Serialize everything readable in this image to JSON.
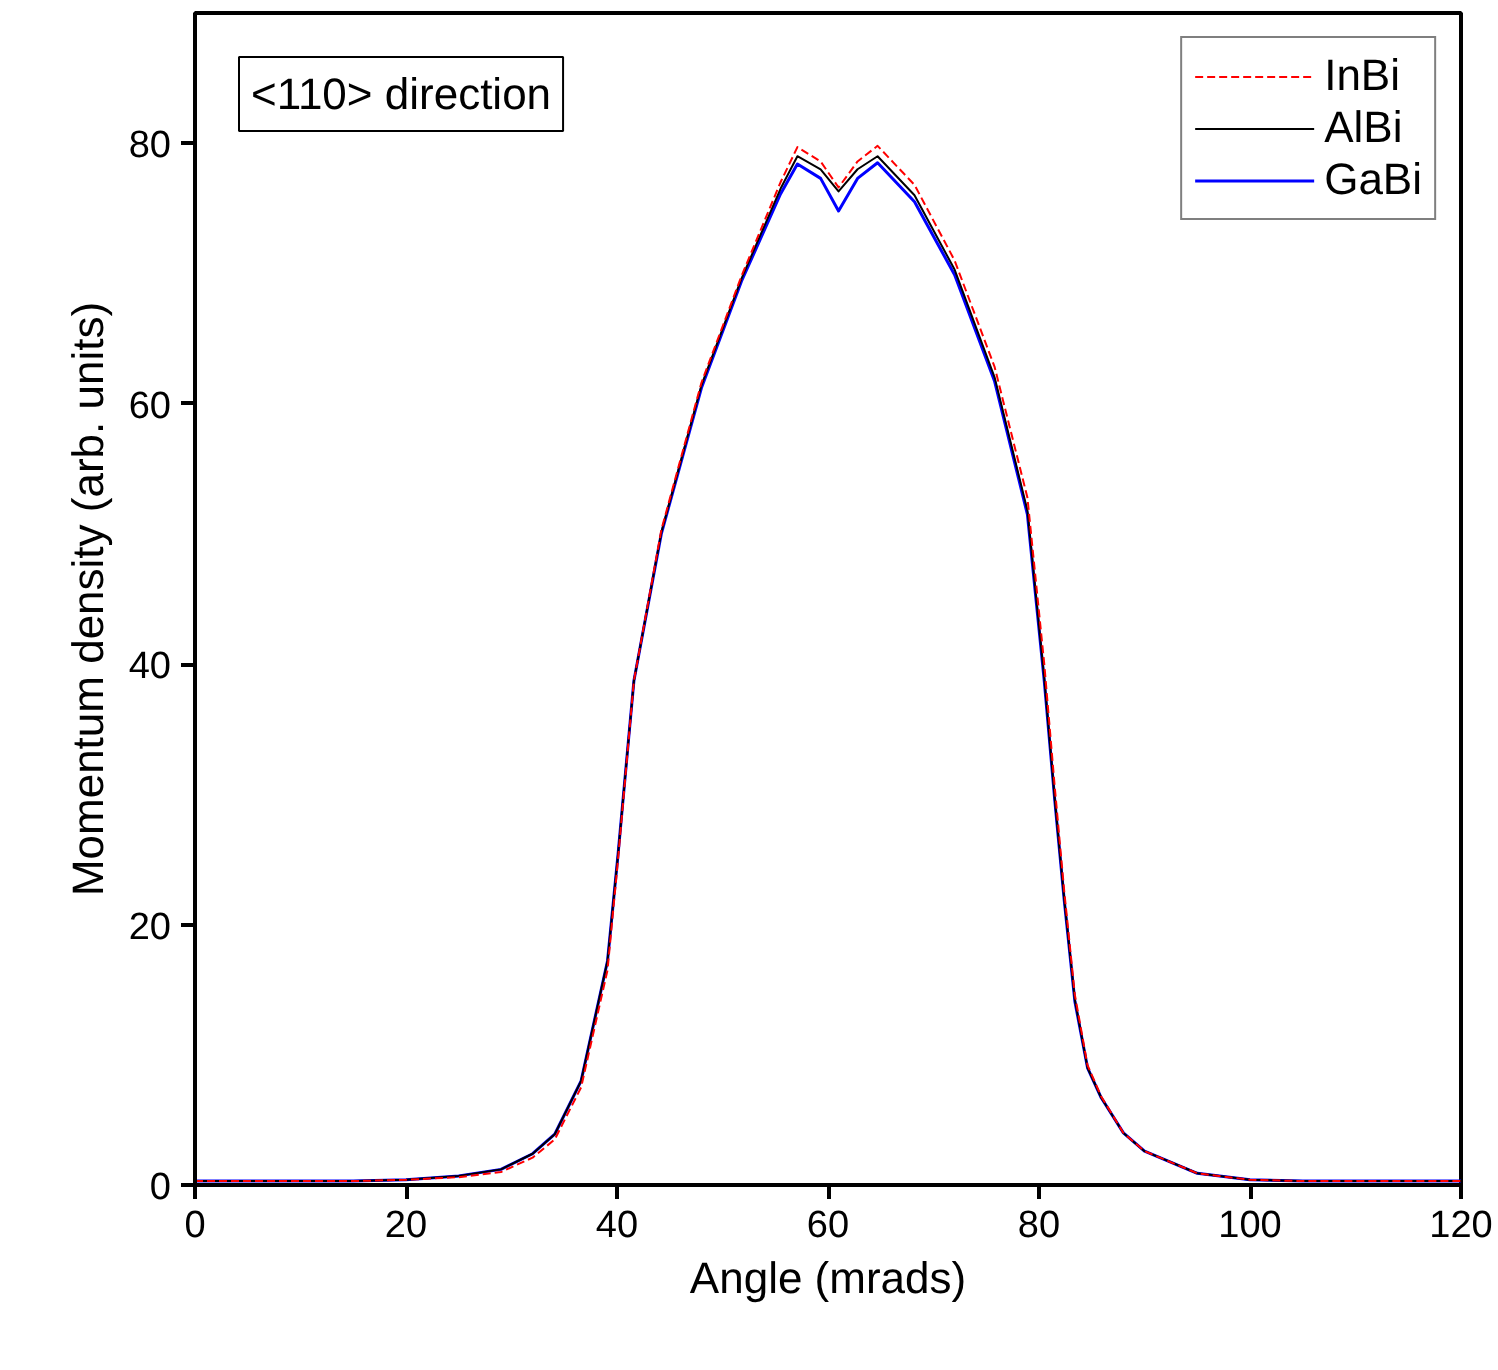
{
  "chart_data": {
    "type": "line",
    "xlabel": "Angle (mrads)",
    "ylabel": "Momentum density (arb. units)",
    "annotations": [
      "<110> direction"
    ],
    "x": [
      0,
      5,
      10,
      15,
      20,
      25,
      29,
      32,
      34.1,
      36.6,
      39.1,
      40.1,
      41.6,
      44.2,
      48,
      51.8,
      55.5,
      57.1,
      59.3,
      61,
      62.8,
      64.7,
      68.2,
      72,
      75.8,
      78.9,
      80.5,
      81.5,
      82.4,
      83.4,
      84.6,
      85.9,
      88,
      90,
      95,
      100,
      105,
      110,
      115,
      120
    ],
    "series": [
      {
        "name": "InBi",
        "color": "#ff0000",
        "line_style": "dashed",
        "values": [
          0.3,
          0.3,
          0.3,
          0.3,
          0.4,
          0.6,
          1.0,
          2.1,
          3.5,
          7.5,
          16.5,
          25.0,
          38.7,
          50.3,
          61.6,
          69.8,
          77.0,
          79.7,
          78.6,
          76.6,
          78.6,
          79.8,
          76.8,
          71.0,
          62.8,
          52.8,
          40.0,
          30.5,
          22.5,
          14.6,
          9.2,
          6.8,
          4.0,
          2.6,
          0.9,
          0.4,
          0.3,
          0.3,
          0.3,
          0.3
        ]
      },
      {
        "name": "AlBi",
        "color": "#000000",
        "line_style": "solid",
        "values": [
          0.3,
          0.3,
          0.3,
          0.3,
          0.4,
          0.7,
          1.2,
          2.4,
          3.9,
          8.0,
          17.2,
          25.4,
          38.7,
          50.1,
          61.4,
          69.6,
          76.5,
          79.0,
          78.0,
          76.3,
          78.0,
          79.0,
          76.0,
          70.3,
          62.0,
          51.8,
          38.9,
          29.6,
          21.9,
          14.2,
          9.0,
          6.7,
          4.0,
          2.6,
          0.9,
          0.4,
          0.3,
          0.3,
          0.3,
          0.3
        ]
      },
      {
        "name": "GaBi",
        "color": "#0000ff",
        "line_style": "solid",
        "values": [
          0.3,
          0.3,
          0.3,
          0.3,
          0.4,
          0.7,
          1.2,
          2.4,
          3.9,
          8.0,
          17.2,
          25.4,
          38.7,
          50.0,
          61.2,
          69.4,
          76.1,
          78.4,
          77.3,
          74.8,
          77.3,
          78.5,
          75.5,
          69.9,
          61.7,
          51.5,
          38.7,
          29.5,
          21.8,
          14.1,
          9.0,
          6.7,
          4.0,
          2.6,
          0.9,
          0.4,
          0.3,
          0.3,
          0.3,
          0.3
        ]
      }
    ],
    "xlim": [
      0,
      120
    ],
    "ylim": [
      0,
      90
    ],
    "xticks": [
      0,
      20,
      40,
      60,
      80,
      100,
      120
    ],
    "yticks": [
      0,
      20,
      40,
      60,
      80
    ],
    "grid": false,
    "legend": "top right",
    "marker": "none"
  }
}
